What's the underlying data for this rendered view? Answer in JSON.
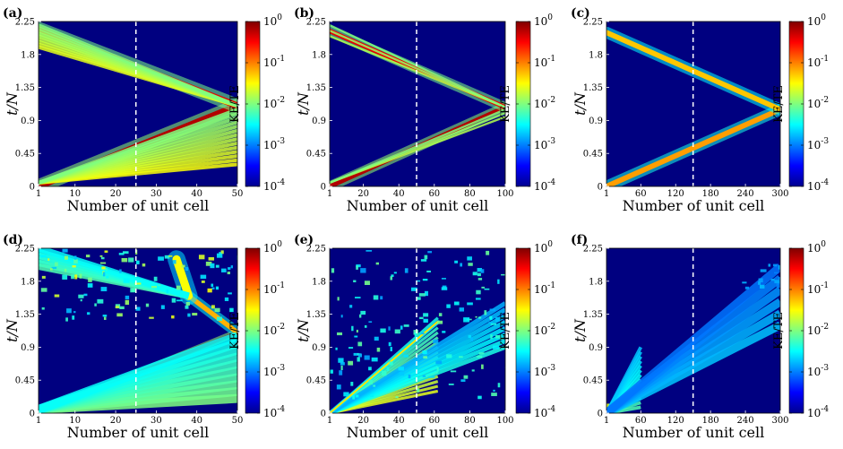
{
  "figure": {
    "colorbar": {
      "label": "KE/TE",
      "tick_labels": [
        "10^0",
        "10^-1",
        "10^-2",
        "10^-3",
        "10^-4"
      ],
      "colormap": [
        "#00008f",
        "#0000ff",
        "#007fff",
        "#00ffff",
        "#7fff7f",
        "#ffff00",
        "#ff7f00",
        "#ff0000",
        "#7f0000"
      ]
    },
    "background_color": "#000080"
  },
  "chart_data": [
    {
      "type": "heatmap",
      "panel_label": "(a)",
      "xlabel": "Number of unit cell",
      "ylabel": "t/N",
      "xlim": [
        1,
        50
      ],
      "ylim": [
        0,
        2.25
      ],
      "x_ticks": [
        1,
        10,
        20,
        30,
        40,
        50
      ],
      "x_tick_labels": [
        "1",
        "10",
        "20",
        "30",
        "40",
        "50"
      ],
      "y_ticks": [
        0,
        0.45,
        0.9,
        1.35,
        1.8,
        2.25
      ],
      "y_tick_labels": [
        "0",
        "0.45",
        "0.9",
        "1.35",
        "1.8",
        "2.25"
      ],
      "dashed_line_x": 25,
      "features": [
        {
          "kind": "beam",
          "x": [
            1,
            50
          ],
          "t": [
            0.0,
            1.1
          ],
          "width": 1.6,
          "level": 0.95
        },
        {
          "kind": "beam",
          "x": [
            50,
            1
          ],
          "t": [
            1.1,
            2.15
          ],
          "width": 1.6,
          "level": 0.9
        },
        {
          "kind": "fan",
          "x0": 1,
          "t0": 0.05,
          "x_end": 50,
          "t_top": [
            0.3,
            1.05
          ],
          "rays": 14,
          "width": 0.9,
          "level": [
            0.5,
            0.62
          ]
        },
        {
          "kind": "fan",
          "x0": 50,
          "t0": 1.1,
          "x_end": 1,
          "t_top": [
            1.9,
            2.2
          ],
          "rays": 9,
          "width": 0.9,
          "level": [
            0.5,
            0.6
          ]
        }
      ]
    },
    {
      "type": "heatmap",
      "panel_label": "(b)",
      "xlabel": "Number of unit cell",
      "ylabel": "t/N",
      "xlim": [
        1,
        100
      ],
      "ylim": [
        0,
        2.25
      ],
      "x_ticks": [
        1,
        20,
        40,
        60,
        80,
        100
      ],
      "x_tick_labels": [
        "1",
        "20",
        "40",
        "60",
        "80",
        "100"
      ],
      "y_ticks": [
        0,
        0.45,
        0.9,
        1.35,
        1.8,
        2.25
      ],
      "y_tick_labels": [
        "0",
        "0.45",
        "0.9",
        "1.35",
        "1.8",
        "2.25"
      ],
      "dashed_line_x": 50,
      "features": [
        {
          "kind": "beam",
          "x": [
            1,
            100
          ],
          "t": [
            0.0,
            1.08
          ],
          "width": 2.6,
          "level": 0.95
        },
        {
          "kind": "beam",
          "x": [
            100,
            1
          ],
          "t": [
            1.08,
            2.12
          ],
          "width": 2.6,
          "level": 0.9
        },
        {
          "kind": "fan",
          "x0": 1,
          "t0": 0.05,
          "x_end": 100,
          "t_top": [
            0.95,
            1.05
          ],
          "rays": 3,
          "width": 1.2,
          "level": [
            0.5,
            0.55
          ]
        },
        {
          "kind": "fan",
          "x0": 100,
          "t0": 1.08,
          "x_end": 1,
          "t_top": [
            2.05,
            2.2
          ],
          "rays": 3,
          "width": 1.2,
          "level": [
            0.5,
            0.55
          ]
        }
      ]
    },
    {
      "type": "heatmap",
      "panel_label": "(c)",
      "xlabel": "Number of unit cell",
      "ylabel": "t/N",
      "xlim": [
        1,
        300
      ],
      "ylim": [
        0,
        2.25
      ],
      "x_ticks": [
        1,
        60,
        120,
        180,
        240,
        300
      ],
      "x_tick_labels": [
        "1",
        "60",
        "120",
        "180",
        "240",
        "300"
      ],
      "y_ticks": [
        0,
        0.45,
        0.9,
        1.35,
        1.8,
        2.25
      ],
      "y_tick_labels": [
        "0",
        "0.45",
        "0.9",
        "1.35",
        "1.8",
        "2.25"
      ],
      "dashed_line_x": 150,
      "features": [
        {
          "kind": "beam",
          "x": [
            1,
            300
          ],
          "t": [
            0.0,
            1.05
          ],
          "width": 9,
          "level": 0.72
        },
        {
          "kind": "beam",
          "x": [
            300,
            1
          ],
          "t": [
            1.05,
            2.1
          ],
          "width": 9,
          "level": 0.68
        }
      ]
    },
    {
      "type": "heatmap",
      "panel_label": "(d)",
      "xlabel": "Number of unit cell",
      "ylabel": "t/N",
      "xlim": [
        1,
        50
      ],
      "ylim": [
        0,
        2.25
      ],
      "x_ticks": [
        1,
        10,
        20,
        30,
        40,
        50
      ],
      "x_tick_labels": [
        "1",
        "10",
        "20",
        "30",
        "40",
        "50"
      ],
      "y_ticks": [
        0,
        0.45,
        0.9,
        1.35,
        1.8,
        2.25
      ],
      "y_tick_labels": [
        "0",
        "0.45",
        "0.9",
        "1.35",
        "1.8",
        "2.25"
      ],
      "dashed_line_x": 25,
      "features": [
        {
          "kind": "beam",
          "x": [
            1,
            50
          ],
          "t": [
            0.0,
            1.1
          ],
          "width": 0.8,
          "level": 0.95
        },
        {
          "kind": "beam",
          "x": [
            50,
            38
          ],
          "t": [
            1.1,
            1.6
          ],
          "width": 1.2,
          "level": 0.7
        },
        {
          "kind": "beam",
          "x": [
            38,
            35
          ],
          "t": [
            1.6,
            2.1
          ],
          "width": 2.0,
          "level": 0.62
        },
        {
          "kind": "fan",
          "x0": 1,
          "t0": 0.05,
          "x_end": 50,
          "t_top": [
            0.2,
            1.05
          ],
          "rays": 10,
          "width": 2.2,
          "level": [
            0.38,
            0.5
          ]
        },
        {
          "kind": "fan",
          "x0": 38,
          "t0": 1.6,
          "x_end": 1,
          "t_top": [
            2.0,
            2.25
          ],
          "rays": 6,
          "width": 1.6,
          "level": [
            0.38,
            0.45
          ]
        },
        {
          "kind": "noise",
          "x": [
            1,
            50
          ],
          "t": [
            1.3,
            2.25
          ],
          "count": 110,
          "level": [
            0.3,
            0.62
          ]
        }
      ]
    },
    {
      "type": "heatmap",
      "panel_label": "(e)",
      "xlabel": "Number of unit cell",
      "ylabel": "t/N",
      "xlim": [
        1,
        100
      ],
      "ylim": [
        0,
        2.25
      ],
      "x_ticks": [
        1,
        20,
        40,
        60,
        80,
        100
      ],
      "x_tick_labels": [
        "1",
        "20",
        "40",
        "60",
        "80",
        "100"
      ],
      "y_ticks": [
        0,
        0.45,
        0.9,
        1.35,
        1.8,
        2.25
      ],
      "y_tick_labels": [
        "0",
        "0.45",
        "0.9",
        "1.35",
        "1.8",
        "2.25"
      ],
      "dashed_line_x": 50,
      "features": [
        {
          "kind": "fan",
          "x0": 1,
          "t0": 0.0,
          "x_end": 62,
          "t_top": [
            0.3,
            1.3
          ],
          "rays": 16,
          "width": 1.6,
          "level": [
            0.4,
            0.6
          ]
        },
        {
          "kind": "fan",
          "x0": 1,
          "t0": 0.0,
          "x_end": 100,
          "t_top": [
            0.9,
            1.5
          ],
          "rays": 8,
          "width": 2.5,
          "level": [
            0.3,
            0.4
          ]
        },
        {
          "kind": "beam",
          "x": [
            1,
            62
          ],
          "t": [
            0.0,
            1.25
          ],
          "width": 1.0,
          "level": 0.65
        },
        {
          "kind": "noise",
          "x": [
            1,
            100
          ],
          "t": [
            0.2,
            2.25
          ],
          "count": 150,
          "level": [
            0.28,
            0.5
          ]
        }
      ]
    },
    {
      "type": "heatmap",
      "panel_label": "(f)",
      "xlabel": "Number of unit cell",
      "ylabel": "t/N",
      "xlim": [
        1,
        300
      ],
      "ylim": [
        0,
        2.25
      ],
      "x_ticks": [
        1,
        60,
        120,
        180,
        240,
        300
      ],
      "x_tick_labels": [
        "1",
        "60",
        "120",
        "180",
        "240",
        "300"
      ],
      "y_ticks": [
        0,
        0.45,
        0.9,
        1.35,
        1.8,
        2.25
      ],
      "y_tick_labels": [
        "0",
        "0.45",
        "0.9",
        "1.35",
        "1.8",
        "2.25"
      ],
      "dashed_line_x": 150,
      "features": [
        {
          "kind": "blob",
          "x": 3,
          "t": 0.03,
          "rx": 14,
          "ry": 0.1,
          "level": 0.6
        },
        {
          "kind": "fan",
          "x0": 1,
          "t0": 0.0,
          "x_end": 60,
          "t_top": [
            0.08,
            0.9
          ],
          "rays": 14,
          "width": 6,
          "level": [
            0.32,
            0.45
          ]
        },
        {
          "kind": "fan",
          "x0": 1,
          "t0": 0.0,
          "x_end": 300,
          "t_top": [
            1.2,
            2.0
          ],
          "rays": 6,
          "width": 14,
          "level": [
            0.24,
            0.32
          ]
        },
        {
          "kind": "noise",
          "x": [
            230,
            300
          ],
          "t": [
            1.7,
            2.05
          ],
          "count": 14,
          "level": [
            0.25,
            0.32
          ]
        }
      ]
    }
  ]
}
